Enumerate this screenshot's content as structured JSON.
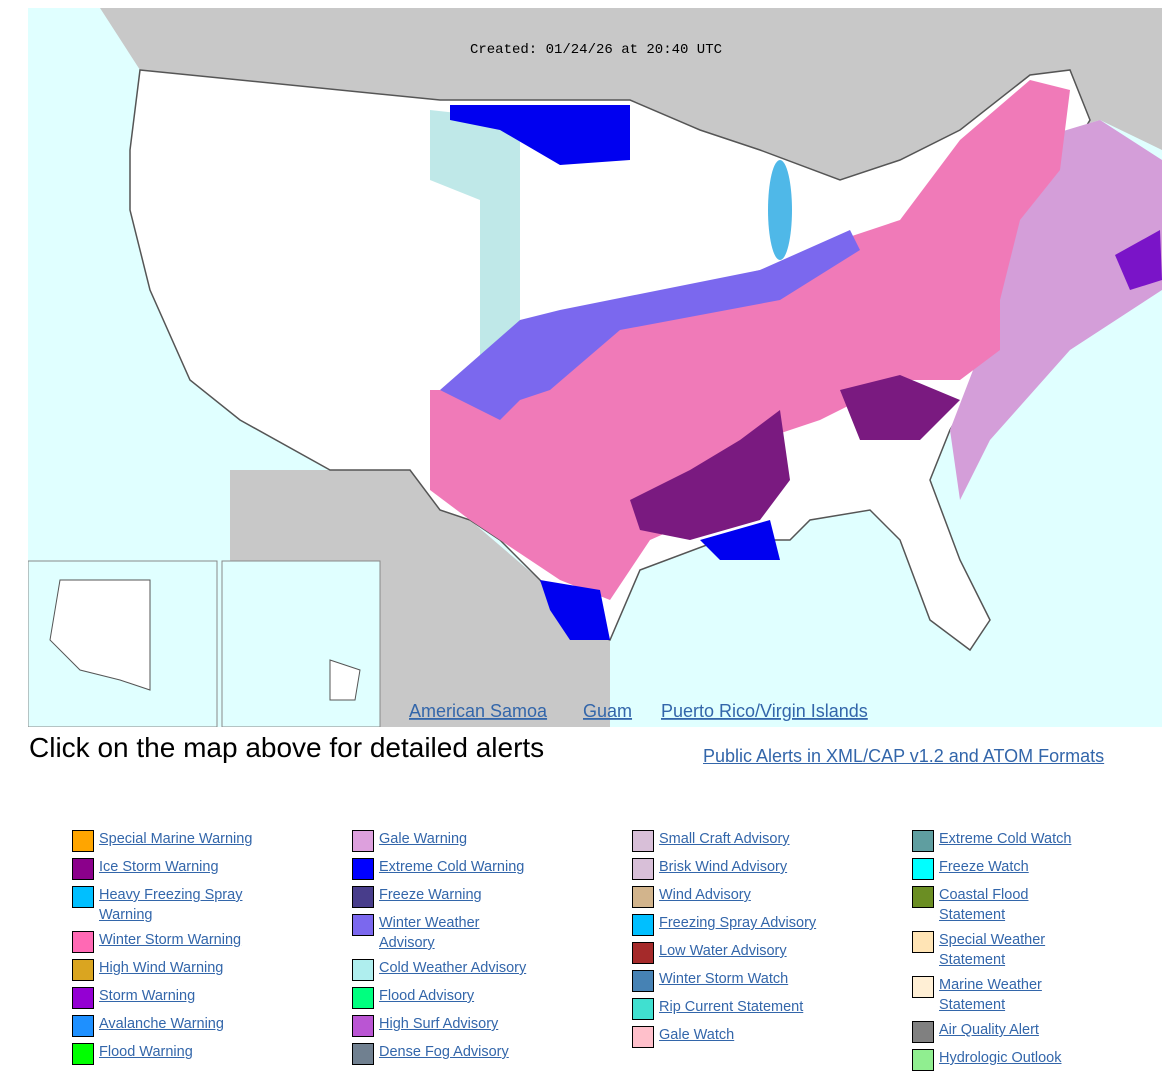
{
  "map": {
    "created": "Created: 01/24/26 at 20:40 UTC",
    "links": [
      "American Samoa",
      "Guam",
      "Puerto Rico/Virgin Islands"
    ]
  },
  "caption": "Click on the map above for detailed alerts",
  "feed_link": "Public Alerts in XML/CAP v1.2 and ATOM Formats",
  "legend": {
    "columns": [
      [
        {
          "label": "Special Marine Warning",
          "color": "#FFA500"
        },
        {
          "label": "Ice Storm Warning",
          "color": "#8B008B"
        },
        {
          "label": "Heavy Freezing Spray Warning",
          "color": "#00BFFF"
        },
        {
          "label": "Winter Storm Warning",
          "color": "#FF69B4"
        },
        {
          "label": "High Wind Warning",
          "color": "#DAA520"
        },
        {
          "label": "Storm Warning",
          "color": "#9400D3"
        },
        {
          "label": "Avalanche Warning",
          "color": "#1E90FF"
        },
        {
          "label": "Flood Warning",
          "color": "#00FF00"
        }
      ],
      [
        {
          "label": "Gale Warning",
          "color": "#DDA0DD"
        },
        {
          "label": "Extreme Cold Warning",
          "color": "#0000FF"
        },
        {
          "label": "Freeze Warning",
          "color": "#483D8B"
        },
        {
          "label": "Winter Weather Advisory",
          "color": "#7B68EE"
        },
        {
          "label": "Cold Weather Advisory",
          "color": "#AFEEEE"
        },
        {
          "label": "Flood Advisory",
          "color": "#00FF7F"
        },
        {
          "label": "High Surf Advisory",
          "color": "#BA55D3"
        },
        {
          "label": "Dense Fog Advisory",
          "color": "#708090"
        }
      ],
      [
        {
          "label": "Small Craft Advisory",
          "color": "#D8BFD8"
        },
        {
          "label": "Brisk Wind Advisory",
          "color": "#D8BFD8"
        },
        {
          "label": "Wind Advisory",
          "color": "#D2B48C"
        },
        {
          "label": "Freezing Spray Advisory",
          "color": "#00BFFF"
        },
        {
          "label": "Low Water Advisory",
          "color": "#A52A2A"
        },
        {
          "label": "Winter Storm Watch",
          "color": "#4682B4"
        },
        {
          "label": "Rip Current Statement",
          "color": "#40E0D0"
        },
        {
          "label": "Gale Watch",
          "color": "#FFC0CB"
        }
      ],
      [
        {
          "label": "Extreme Cold Watch",
          "color": "#5F9EA0"
        },
        {
          "label": "Freeze Watch",
          "color": "#00FFFF"
        },
        {
          "label": "Coastal Flood Statement",
          "color": "#6B8E23"
        },
        {
          "label": "Special Weather Statement",
          "color": "#FFE4B5"
        },
        {
          "label": "Marine Weather Statement",
          "color": "#FFEFD5"
        },
        {
          "label": "Air Quality Alert",
          "color": "#808080"
        },
        {
          "label": "Hydrologic Outlook",
          "color": "#90EE90"
        }
      ]
    ]
  }
}
